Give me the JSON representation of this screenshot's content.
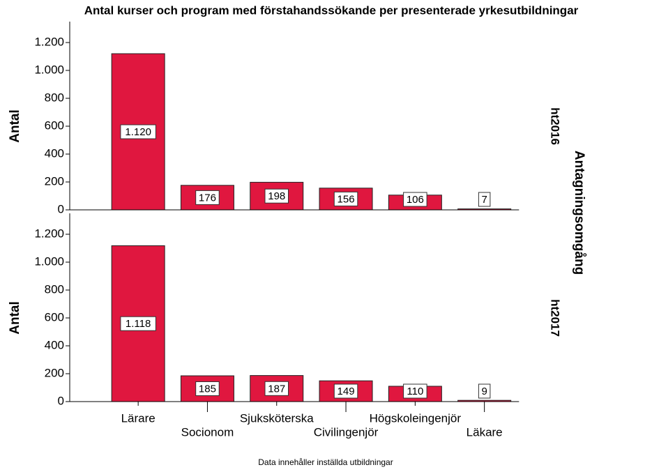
{
  "chart_data": {
    "type": "bar",
    "facet": true,
    "title": "Antal kurser och program med förstahandssökande per presenterade yrkesutbildningar",
    "ylabel": "Antal",
    "facet_label": "Antagningsomgång",
    "footnote": "Data innehåller inställda utbildningar",
    "color": "#e0173f",
    "categories": [
      "Lärare",
      "Socionom",
      "Sjuksköterska",
      "Civilingenjör",
      "Högskoleingenjör",
      "Läkare"
    ],
    "series": [
      {
        "name": "ht2016",
        "values": [
          1120,
          176,
          198,
          156,
          106,
          7
        ],
        "value_labels": [
          "1.120",
          "176",
          "198",
          "156",
          "106",
          "7"
        ]
      },
      {
        "name": "ht2017",
        "values": [
          1118,
          185,
          187,
          149,
          110,
          9
        ],
        "value_labels": [
          "1.118",
          "185",
          "187",
          "149",
          "110",
          "9"
        ]
      }
    ],
    "ylim": [
      0,
      1200
    ],
    "yticks": [
      0,
      200,
      400,
      600,
      800,
      {
        "value": 1000,
        "label": "1.000"
      },
      {
        "value": 1200,
        "label": "1.200"
      }
    ]
  }
}
